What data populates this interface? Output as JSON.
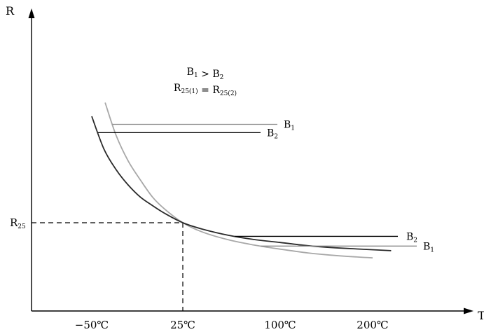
{
  "chart_data": {
    "type": "line",
    "title": "",
    "xlabel": "T",
    "ylabel": "R",
    "x_ticks": [
      "−50℃",
      "25℃",
      "100℃",
      "200℃"
    ],
    "y_ticks": [
      {
        "text": "R",
        "sub": "25"
      }
    ],
    "annotations": [
      {
        "lhs": "B",
        "lhs_sub": "1",
        "op": ">",
        "rhs": "B",
        "rhs_sub": "2"
      },
      {
        "lhs": "R",
        "lhs_sub": "25(1)",
        "op": "=",
        "rhs": "R",
        "rhs_sub": "25(2)"
      }
    ],
    "series": [
      {
        "name": "B1",
        "label": "B",
        "label_sub": "1",
        "color": "#a8a8a8",
        "x": [
          -39,
          -30,
          -20,
          -10,
          0,
          10,
          25,
          40,
          60,
          80,
          100,
          130,
          160,
          200
        ],
        "y": [
          95,
          76,
          61,
          50,
          40,
          33,
          25,
          19.6,
          15.1,
          12,
          9.6,
          7.4,
          5.9,
          4.5
        ]
      },
      {
        "name": "B2",
        "label": "B",
        "label_sub": "2",
        "color": "#2a2a2a",
        "x": [
          -50,
          -40,
          -30,
          -20,
          -10,
          0,
          10,
          25,
          40,
          60,
          80,
          100,
          130,
          160,
          220
        ],
        "y": [
          87,
          68,
          56,
          47,
          40,
          35,
          30.5,
          25,
          21.3,
          17.7,
          15.2,
          13.5,
          11.6,
          10.4,
          8.7
        ]
      }
    ]
  }
}
